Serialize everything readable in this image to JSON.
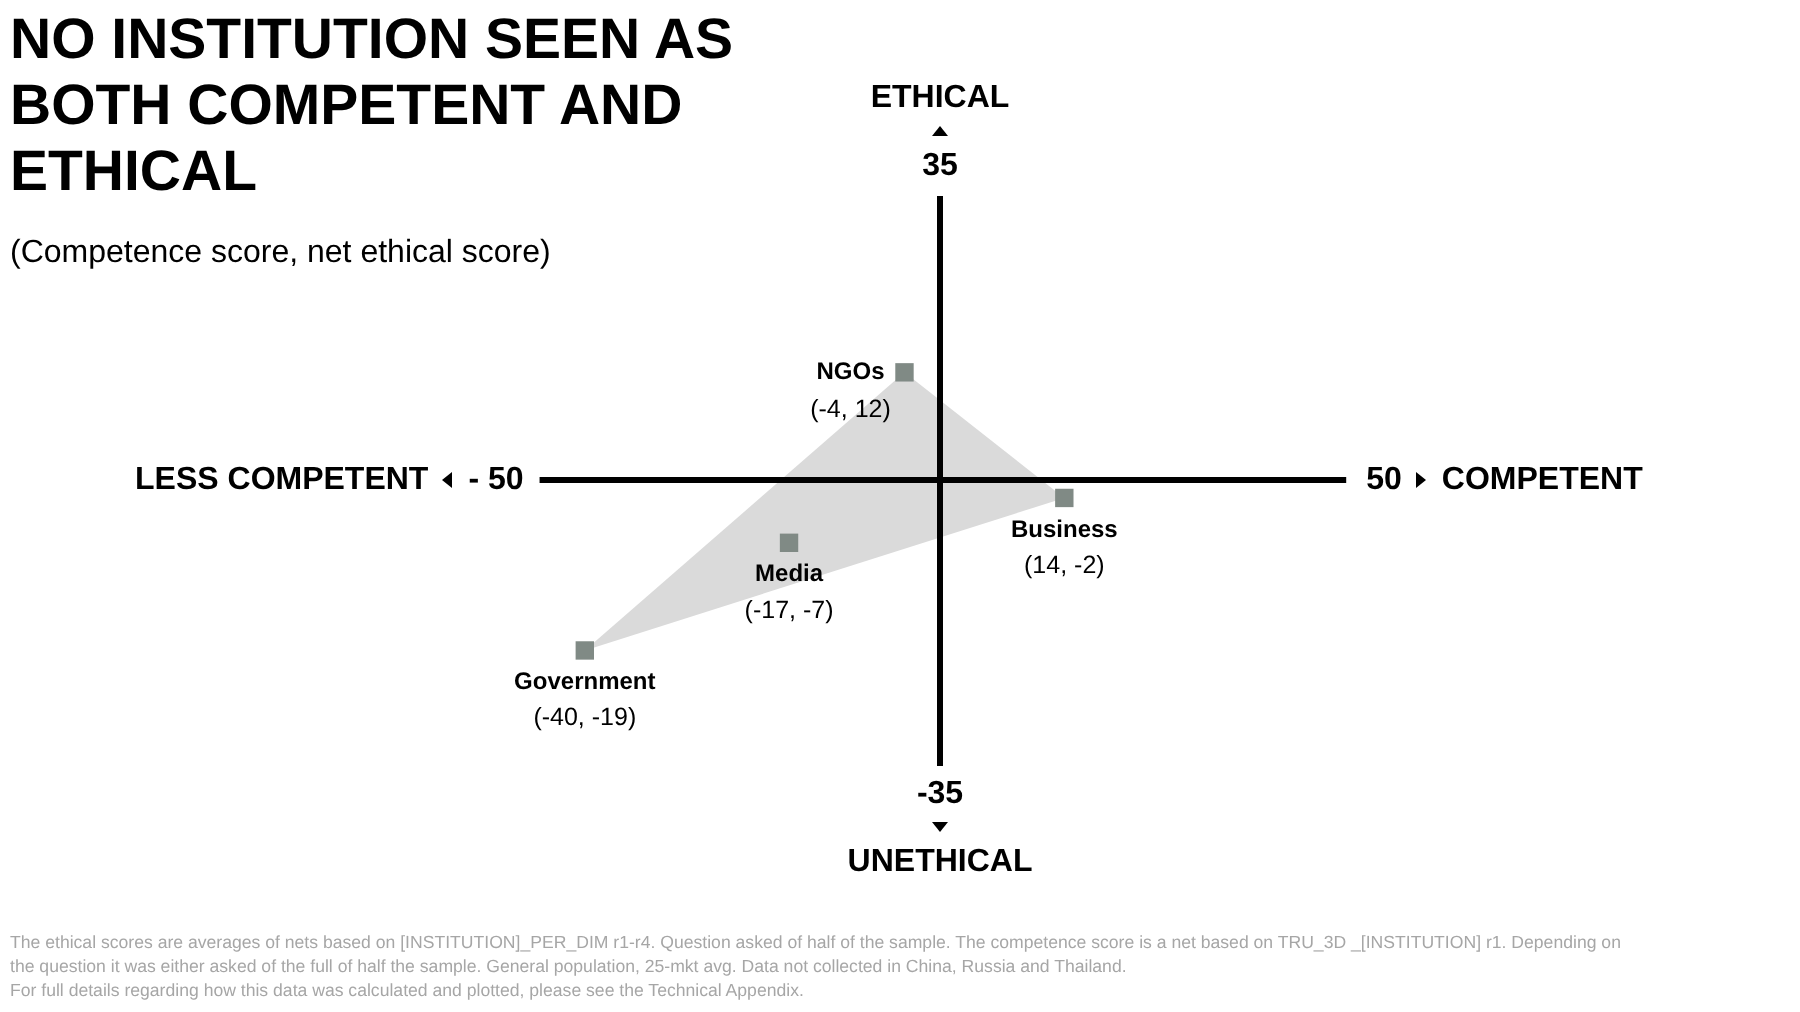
{
  "chart_data": {
    "type": "scatter",
    "title": "NO INSTITUTION SEEN AS BOTH COMPETENT AND ETHICAL",
    "subtitle": "(Competence score, net ethical score)",
    "xlabel": "COMPETENT",
    "ylabel": "ETHICAL",
    "xlim": [
      -50,
      50
    ],
    "ylim": [
      -35,
      35
    ],
    "xticks": [
      {
        "value": -50,
        "label": "- 50"
      },
      50
    ],
    "yticks": [
      -35,
      35
    ],
    "series": [
      {
        "type": "area",
        "color": "#dadada",
        "x": [
          -4,
          14,
          -40
        ],
        "values": [
          12,
          -2,
          -19
        ]
      },
      {
        "name": "NGOs",
        "color": "#808a85",
        "marker": "square",
        "x": [
          -4
        ],
        "values": [
          12
        ],
        "value_labels": [
          "(-4, 12)"
        ]
      },
      {
        "name": "Business",
        "color": "#808a85",
        "marker": "square",
        "x": [
          14
        ],
        "values": [
          -2
        ],
        "value_labels": [
          "(14, -2)"
        ]
      },
      {
        "name": "Media",
        "color": "#808a85",
        "marker": "square",
        "x": [
          -17
        ],
        "values": [
          -7
        ],
        "value_labels": [
          "(-17, -7)"
        ]
      },
      {
        "name": "Government",
        "color": "#808a85",
        "marker": "square",
        "x": [
          -40
        ],
        "values": [
          -19
        ],
        "value_labels": [
          "(-40, -19)"
        ]
      }
    ],
    "annotations": [
      "LESS COMPETENT",
      "UNETHICAL",
      "The ethical scores are averages of nets based on [INSTITUTION]_PER_DIM r1-r4. Question asked of half of the sample. The competence score is a net based on TRU_3D _[INSTITUTION] r1. Depending on the question it was either asked of the full of half the sample. General population, 25-mkt avg. Data not collected in China, Russia and Thailand.",
      "For full details regarding how this data was calculated and plotted, please see the Technical Appendix."
    ]
  }
}
